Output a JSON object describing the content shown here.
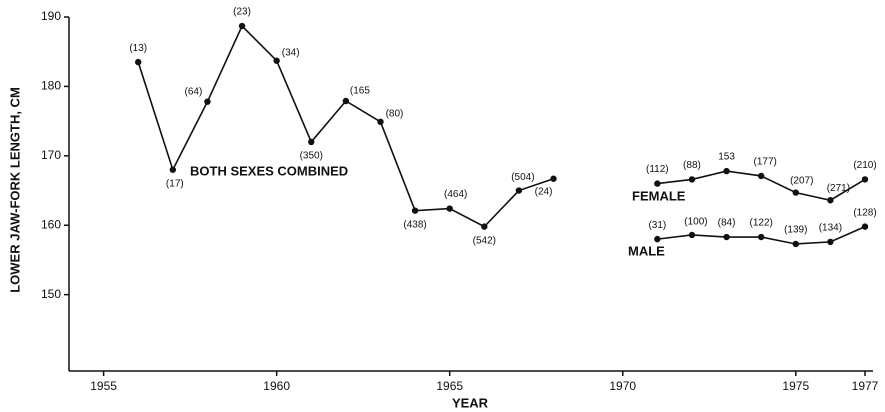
{
  "chart_data": {
    "type": "line",
    "xlabel": "YEAR",
    "ylabel": "LOWER JAW-FORK LENGTH, CM",
    "xlim": [
      1954,
      1977
    ],
    "xticks": [
      1955,
      1960,
      1965,
      1970,
      1975,
      1977
    ],
    "ylim": [
      139,
      190
    ],
    "yticks": [
      150,
      160,
      170,
      180,
      190
    ],
    "color": "#111111",
    "series": [
      {
        "name": "BOTH SEXES COMBINED",
        "x": [
          1956,
          1957,
          1958,
          1959,
          1960,
          1961,
          1962,
          1963,
          1964,
          1965,
          1966,
          1967,
          1968
        ],
        "values": [
          183.5,
          168,
          177.8,
          188.7,
          183.7,
          172,
          177.9,
          174.9,
          162.1,
          162.4,
          159.8,
          165,
          166.7
        ],
        "sample_sizes": [
          "(13)",
          "(17)",
          "(64)",
          "(23)",
          "(34)",
          "(350)",
          "(165",
          "(80)",
          "(438)",
          "(464)",
          "(542)",
          "(504)",
          "(24)"
        ]
      },
      {
        "name": "FEMALE",
        "x": [
          1971,
          1972,
          1973,
          1974,
          1975,
          1976,
          1977
        ],
        "values": [
          166,
          166.6,
          167.8,
          167.1,
          164.7,
          163.6,
          166.6
        ],
        "sample_sizes": [
          "(112)",
          "(88)",
          "153",
          "(177)",
          "(207)",
          "(271)",
          "(210)"
        ]
      },
      {
        "name": "MALE",
        "x": [
          1971,
          1972,
          1973,
          1974,
          1975,
          1976,
          1977
        ],
        "values": [
          158,
          158.6,
          158.3,
          158.3,
          157.3,
          157.6,
          159.8
        ],
        "sample_sizes": [
          "(31)",
          "(100)",
          "(84)",
          "(122)",
          "(139)",
          "(134)",
          "(128)"
        ]
      }
    ]
  }
}
